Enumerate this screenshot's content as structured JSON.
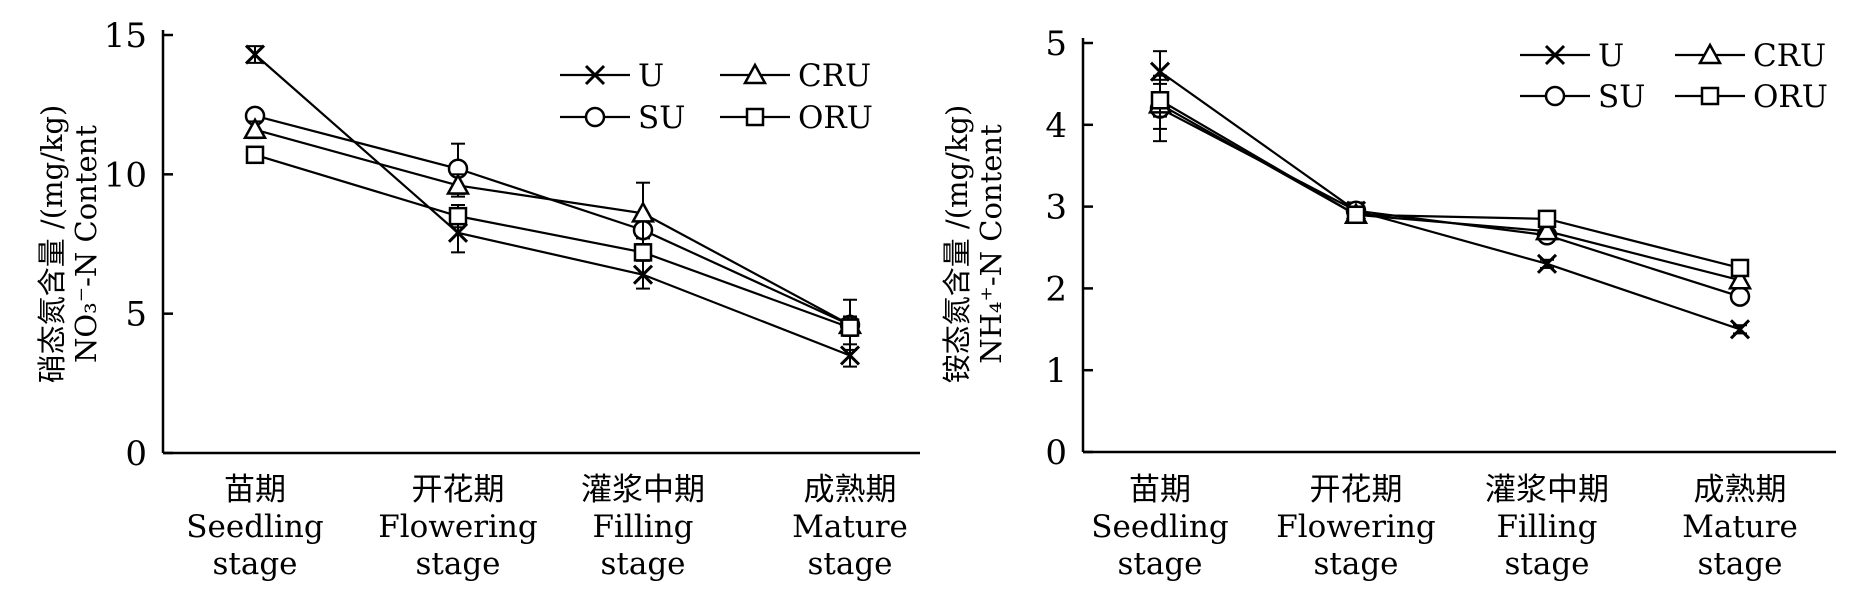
{
  "chart_data": [
    {
      "type": "line",
      "ylabel_lines": [
        "硝态氮含量 /(mg/kg)",
        "NO₃⁻-N Content"
      ],
      "ylim": [
        0,
        15
      ],
      "yticks": [
        "0",
        "5",
        "10",
        "15"
      ],
      "categories": [
        [
          "苗期",
          "Seedling",
          "stage"
        ],
        [
          "开花期",
          "Flowering",
          "stage"
        ],
        [
          "灌浆中期",
          "Filling",
          "stage"
        ],
        [
          "成熟期",
          "Mature",
          "stage"
        ]
      ],
      "legend_position": "top-right",
      "series": [
        {
          "name": "U",
          "marker": "x",
          "values": [
            14.3,
            7.9,
            6.4,
            3.5
          ],
          "errors": [
            0.3,
            0.7,
            0.5,
            0.4
          ]
        },
        {
          "name": "SU",
          "marker": "circle",
          "values": [
            12.1,
            10.2,
            8.0,
            4.6
          ],
          "errors": [
            0.2,
            0.9,
            0.3,
            0.9
          ]
        },
        {
          "name": "CRU",
          "marker": "triangle",
          "values": [
            11.6,
            9.6,
            8.6,
            4.6
          ],
          "errors": [
            0.3,
            0.4,
            1.1,
            0.3
          ]
        },
        {
          "name": "ORU",
          "marker": "square",
          "values": [
            10.7,
            8.5,
            7.2,
            4.5
          ],
          "errors": [
            0.2,
            0.4,
            0.3,
            0.3
          ]
        }
      ]
    },
    {
      "type": "line",
      "ylabel_lines": [
        "铵态氮含量 /(mg/kg)",
        "NH₄⁺-N Content"
      ],
      "ylim": [
        0,
        5
      ],
      "yticks": [
        "0",
        "1",
        "2",
        "3",
        "4",
        "5"
      ],
      "categories": [
        [
          "苗期",
          "Seedling",
          "stage"
        ],
        [
          "开花期",
          "Flowering",
          "stage"
        ],
        [
          "灌浆中期",
          "Filling",
          "stage"
        ],
        [
          "成熟期",
          "Mature",
          "stage"
        ]
      ],
      "legend_position": "top-right",
      "series": [
        {
          "name": "U",
          "marker": "x",
          "values": [
            4.65,
            2.95,
            2.3,
            1.5
          ],
          "errors": [
            0.25,
            0.1,
            0.05,
            0.05
          ]
        },
        {
          "name": "SU",
          "marker": "circle",
          "values": [
            4.2,
            2.95,
            2.65,
            1.9
          ],
          "errors": [
            0.4,
            0.1,
            0.05,
            0.05
          ]
        },
        {
          "name": "CRU",
          "marker": "triangle",
          "values": [
            4.25,
            2.9,
            2.7,
            2.1
          ],
          "errors": [
            0.3,
            0.1,
            0.05,
            0.05
          ]
        },
        {
          "name": "ORU",
          "marker": "square",
          "values": [
            4.3,
            2.9,
            2.85,
            2.25
          ],
          "errors": [
            0.2,
            0.1,
            0.08,
            0.05
          ]
        }
      ]
    }
  ]
}
